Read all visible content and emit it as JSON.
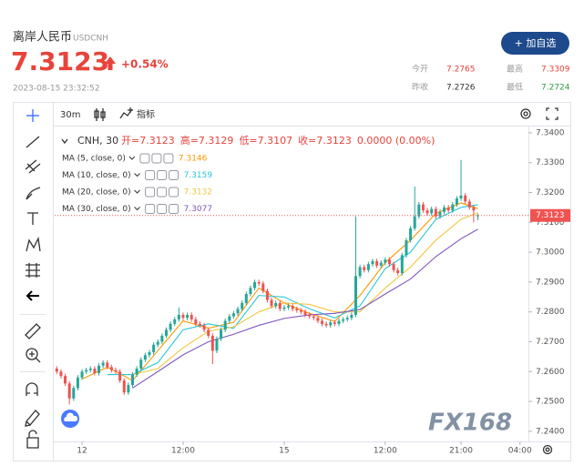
{
  "header": {
    "name": "离岸人民币",
    "code": "USDCNH",
    "price": "7.3123",
    "change": "+0.54%",
    "time": "2023-08-15 23:32:52",
    "button": "+ 加自选",
    "stats": [
      {
        "label": "今开",
        "value": "7.2765"
      },
      {
        "label": "最高",
        "value": "7.3309"
      },
      {
        "label": "昨收",
        "value": "7.2726"
      },
      {
        "label": "最低",
        "value": "7.2724"
      }
    ]
  },
  "toolbar": {
    "interval": "30m",
    "indicators": "指标"
  },
  "chart_data": {
    "type": "candlestick",
    "symbol": "CNH, 30",
    "ohlc_labels": [
      "开=7.3123",
      "高=7.3129",
      "低=7.3107",
      "收=7.3123",
      "0.0000 (0.00%)"
    ],
    "x": [
      -6,
      -5,
      -4,
      -3,
      -2,
      -1,
      0,
      1,
      2,
      3,
      4,
      5,
      6,
      7,
      8,
      9,
      10,
      11,
      12,
      13,
      14,
      15,
      16,
      17,
      18,
      19,
      20,
      21,
      22,
      23,
      24,
      25,
      26,
      27,
      28,
      29,
      30,
      31,
      32,
      33,
      34,
      35,
      36,
      37,
      38,
      39,
      40,
      41,
      42,
      43,
      44,
      45,
      46,
      47,
      48,
      49,
      50,
      51,
      52,
      53,
      54,
      55,
      56,
      57,
      58,
      59,
      60,
      61,
      62,
      63,
      64,
      65,
      66,
      67,
      68,
      69,
      70,
      71,
      72,
      73,
      74,
      75,
      76,
      77,
      78,
      79,
      80,
      81,
      82,
      83,
      84,
      85,
      86,
      87,
      88,
      89,
      90,
      91,
      92,
      93,
      94
    ],
    "open": [
      7.261,
      7.26,
      7.2585,
      7.256,
      7.251,
      7.2545,
      7.258,
      7.26,
      7.2605,
      7.261,
      7.2595,
      7.262,
      7.263,
      7.2615,
      7.2605,
      7.26,
      7.257,
      7.253,
      7.2555,
      7.259,
      7.261,
      7.264,
      7.2655,
      7.2665,
      7.269,
      7.27,
      7.272,
      7.274,
      7.276,
      7.2775,
      7.279,
      7.278,
      7.279,
      7.2775,
      7.276,
      7.2755,
      7.274,
      7.272,
      7.267,
      7.271,
      7.274,
      7.277,
      7.2785,
      7.2795,
      7.281,
      7.283,
      7.286,
      7.288,
      7.29,
      7.2895,
      7.287,
      7.284,
      7.282,
      7.283,
      7.281,
      7.2815,
      7.282,
      7.281,
      7.2805,
      7.28,
      7.279,
      7.2785,
      7.278,
      7.277,
      7.276,
      7.2755,
      7.2765,
      7.276,
      7.277,
      7.2775,
      7.278,
      7.279,
      7.292,
      7.295,
      7.294,
      7.296,
      7.297,
      7.2955,
      7.2965,
      7.2975,
      7.296,
      7.294,
      7.293,
      7.299,
      7.304,
      7.308,
      7.312,
      7.316,
      7.314,
      7.313,
      7.3145,
      7.312,
      7.3135,
      7.315,
      7.314,
      7.316,
      7.318,
      7.319,
      7.317,
      7.315,
      7.3123
    ],
    "high": [
      7.2618,
      7.2608,
      7.2593,
      7.2568,
      7.2553,
      7.2588,
      7.2608,
      7.2613,
      7.2618,
      7.2618,
      7.2628,
      7.2638,
      7.2638,
      7.2623,
      7.2613,
      7.2608,
      7.2578,
      7.2563,
      7.2598,
      7.2618,
      7.2648,
      7.2663,
      7.2673,
      7.2698,
      7.2708,
      7.2728,
      7.2748,
      7.2768,
      7.2783,
      7.2815,
      7.2798,
      7.2798,
      7.2798,
      7.2783,
      7.2768,
      7.2763,
      7.2748,
      7.2728,
      7.2718,
      7.2748,
      7.2778,
      7.2793,
      7.2803,
      7.2818,
      7.2838,
      7.2868,
      7.2888,
      7.2908,
      7.2908,
      7.2903,
      7.2878,
      7.2848,
      7.2838,
      7.2838,
      7.2823,
      7.2828,
      7.2828,
      7.2818,
      7.2813,
      7.2808,
      7.2798,
      7.2793,
      7.2788,
      7.2778,
      7.2768,
      7.2773,
      7.2773,
      7.2778,
      7.2783,
      7.2788,
      7.2798,
      7.312,
      7.2958,
      7.2958,
      7.2968,
      7.2978,
      7.2978,
      7.2973,
      7.2983,
      7.2983,
      7.2968,
      7.2948,
      7.2998,
      7.3048,
      7.3088,
      7.322,
      7.3168,
      7.3168,
      7.3148,
      7.3153,
      7.3153,
      7.3143,
      7.3158,
      7.3158,
      7.3168,
      7.3188,
      7.3309,
      7.3198,
      7.3178,
      7.3158,
      7.3129
    ],
    "low": [
      7.2592,
      7.2577,
      7.2552,
      7.249,
      7.2502,
      7.2537,
      7.2572,
      7.2592,
      7.2597,
      7.2587,
      7.2587,
      7.2612,
      7.2607,
      7.2597,
      7.2592,
      7.2562,
      7.2522,
      7.2522,
      7.2547,
      7.2582,
      7.2602,
      7.2632,
      7.2647,
      7.2657,
      7.2682,
      7.2692,
      7.2712,
      7.2732,
      7.2752,
      7.2767,
      7.2772,
      7.2772,
      7.2767,
      7.2752,
      7.2747,
      7.2732,
      7.2712,
      7.2625,
      7.2662,
      7.2702,
      7.2732,
      7.2762,
      7.2777,
      7.2787,
      7.2802,
      7.2822,
      7.2852,
      7.2872,
      7.2887,
      7.2862,
      7.2832,
      7.2812,
      7.2812,
      7.2802,
      7.2802,
      7.2807,
      7.2802,
      7.2797,
      7.2792,
      7.2782,
      7.2777,
      7.2772,
      7.2762,
      7.2752,
      7.2747,
      7.2747,
      7.2752,
      7.2752,
      7.2762,
      7.2767,
      7.2772,
      7.2782,
      7.2912,
      7.2932,
      7.2932,
      7.2952,
      7.2947,
      7.2947,
      7.2957,
      7.2952,
      7.2932,
      7.2922,
      7.2922,
      7.2982,
      7.3032,
      7.3072,
      7.3112,
      7.3132,
      7.3122,
      7.3122,
      7.3112,
      7.3112,
      7.3127,
      7.3132,
      7.3132,
      7.3152,
      7.3172,
      7.3162,
      7.3142,
      7.31,
      7.3107
    ],
    "close": [
      7.26,
      7.2585,
      7.256,
      7.251,
      7.2545,
      7.258,
      7.26,
      7.2605,
      7.261,
      7.2595,
      7.262,
      7.263,
      7.2615,
      7.2605,
      7.26,
      7.257,
      7.253,
      7.2555,
      7.259,
      7.261,
      7.264,
      7.2655,
      7.2665,
      7.269,
      7.27,
      7.272,
      7.274,
      7.276,
      7.2775,
      7.279,
      7.278,
      7.279,
      7.2775,
      7.276,
      7.2755,
      7.274,
      7.272,
      7.267,
      7.271,
      7.274,
      7.277,
      7.2785,
      7.2795,
      7.281,
      7.283,
      7.286,
      7.288,
      7.29,
      7.2895,
      7.287,
      7.284,
      7.282,
      7.283,
      7.281,
      7.2815,
      7.282,
      7.281,
      7.2805,
      7.28,
      7.279,
      7.2785,
      7.278,
      7.277,
      7.276,
      7.2755,
      7.2765,
      7.276,
      7.277,
      7.2775,
      7.278,
      7.279,
      7.292,
      7.295,
      7.294,
      7.296,
      7.297,
      7.2955,
      7.2965,
      7.2975,
      7.296,
      7.294,
      7.293,
      7.299,
      7.304,
      7.308,
      7.312,
      7.316,
      7.314,
      7.313,
      7.3145,
      7.312,
      7.3135,
      7.315,
      7.314,
      7.316,
      7.318,
      7.319,
      7.317,
      7.315,
      7.314,
      7.3123
    ],
    "up_color": "#26a69a",
    "down_color": "#ef5350",
    "ma": [
      {
        "name": "MA (5, close, 0)",
        "value": "7.3146",
        "color": "#ff9800",
        "x": [
          0,
          6,
          12,
          18,
          24,
          30,
          36,
          42,
          48,
          54,
          60,
          66,
          72,
          78,
          84,
          90,
          94
        ],
        "values": [
          7.2575,
          7.2615,
          7.257,
          7.267,
          7.277,
          7.2745,
          7.2765,
          7.288,
          7.283,
          7.2795,
          7.2768,
          7.2855,
          7.2965,
          7.304,
          7.313,
          7.3165,
          7.3146
        ]
      },
      {
        "name": "MA (10, close, 0)",
        "value": "7.3159",
        "color": "#26c6da",
        "x": [
          6,
          12,
          18,
          24,
          30,
          36,
          42,
          48,
          54,
          60,
          66,
          72,
          78,
          84,
          90,
          94
        ],
        "values": [
          7.259,
          7.259,
          7.263,
          7.274,
          7.276,
          7.2745,
          7.2855,
          7.285,
          7.281,
          7.278,
          7.282,
          7.2945,
          7.3,
          7.311,
          7.315,
          7.3159
        ]
      },
      {
        "name": "MA (20, close, 0)",
        "value": "7.3132",
        "color": "#f5c542",
        "x": [
          12,
          18,
          24,
          30,
          36,
          42,
          48,
          54,
          60,
          66,
          72,
          78,
          84,
          90,
          94
        ],
        "values": [
          7.259,
          7.261,
          7.268,
          7.2735,
          7.275,
          7.28,
          7.283,
          7.2825,
          7.28,
          7.28,
          7.288,
          7.295,
          7.304,
          7.311,
          7.3132
        ]
      },
      {
        "name": "MA (30, close, 0)",
        "value": "7.3077",
        "color": "#7e57c2",
        "x": [
          12,
          18,
          24,
          30,
          36,
          42,
          48,
          54,
          60,
          66,
          72,
          78,
          84,
          90,
          94
        ],
        "values": [
          7.2545,
          7.26,
          7.2656,
          7.27,
          7.2725,
          7.2755,
          7.2778,
          7.279,
          7.2795,
          7.2808,
          7.286,
          7.291,
          7.2985,
          7.3045,
          7.3077
        ]
      }
    ],
    "last_price": {
      "value": 7.3123,
      "label": "7.3123"
    },
    "ylim": [
      7.2366,
      7.3418
    ],
    "yticks": [
      {
        "value": 7.24,
        "label": "7.2400"
      },
      {
        "value": 7.25,
        "label": "7.2500"
      },
      {
        "value": 7.26,
        "label": "7.2600"
      },
      {
        "value": 7.27,
        "label": "7.2700"
      },
      {
        "value": 7.28,
        "label": "7.2800"
      },
      {
        "value": 7.29,
        "label": "7.2900"
      },
      {
        "value": 7.3,
        "label": "7.3000"
      },
      {
        "value": 7.31,
        "label": "7.3100"
      },
      {
        "value": 7.32,
        "label": "7.3200"
      },
      {
        "value": 7.33,
        "label": "7.3300"
      },
      {
        "value": 7.34,
        "label": "7.3400"
      }
    ],
    "xlim": [
      -6.5,
      106
    ],
    "xticks": [
      {
        "value": 0,
        "label": "12"
      },
      {
        "value": 24,
        "label": "12:00"
      },
      {
        "value": 48,
        "label": "15"
      },
      {
        "value": 72,
        "label": "12:00"
      },
      {
        "value": 90,
        "label": "21:00"
      },
      {
        "value": 104,
        "label": "04:00"
      }
    ],
    "grid": false,
    "watermark": "FX168"
  }
}
